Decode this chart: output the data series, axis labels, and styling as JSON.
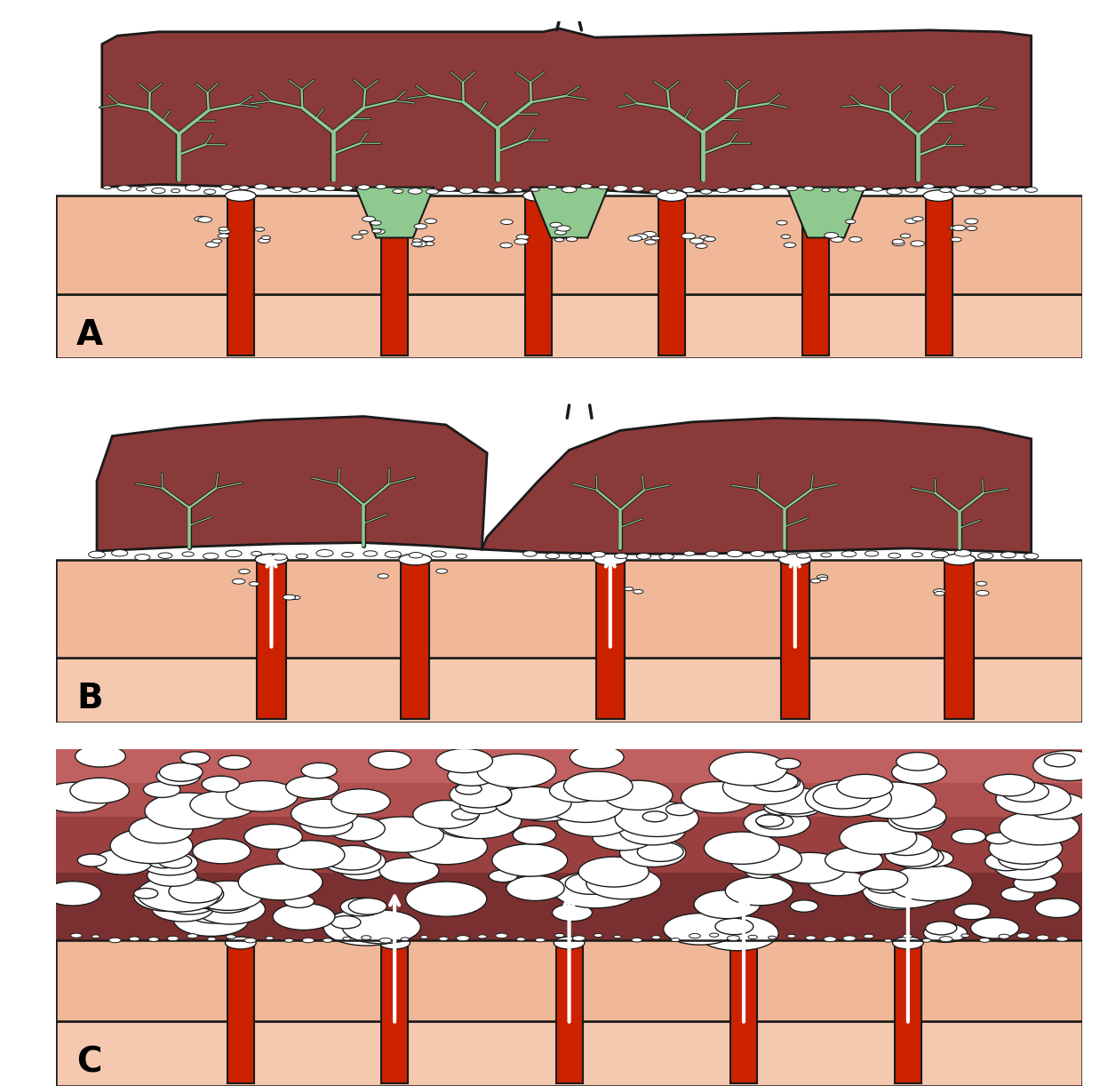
{
  "bg_color": "#ffffff",
  "skin_light": "#f5c8b0",
  "skin_mid": "#f0b898",
  "mass_color": "#8B3A3A",
  "artery_color": "#cc2200",
  "trophoblast_green": "#90c990",
  "plug_white": "#ffffff",
  "outline_color": "#1a1a1a",
  "arrow_color": "#ffffff",
  "label_color": "#000000",
  "panel_labels": [
    "A",
    "B",
    "C"
  ]
}
